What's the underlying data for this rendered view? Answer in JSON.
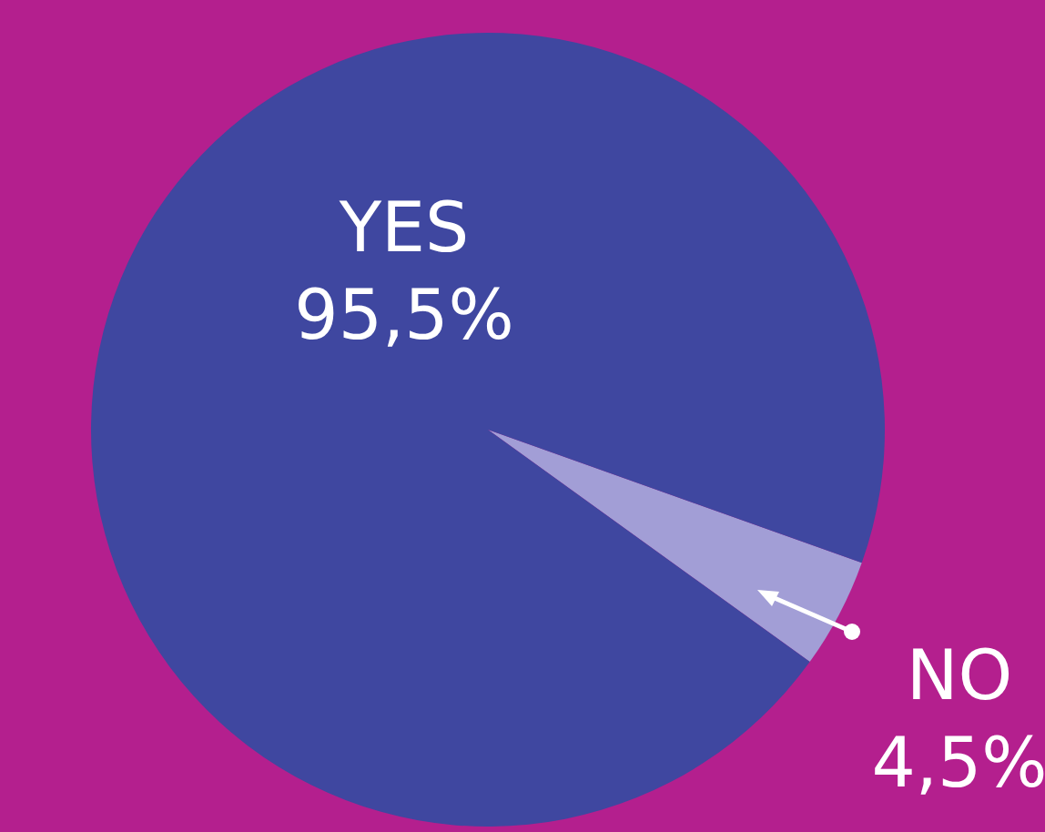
{
  "chart_data": {
    "type": "pie",
    "categories": [
      "NO",
      "YES"
    ],
    "values": [
      4.5,
      95.5
    ],
    "colors": [
      "#a29ed6",
      "#3f47a0"
    ],
    "value_labels": [
      "4,5%",
      "95,5%"
    ],
    "legend": false
  }
}
